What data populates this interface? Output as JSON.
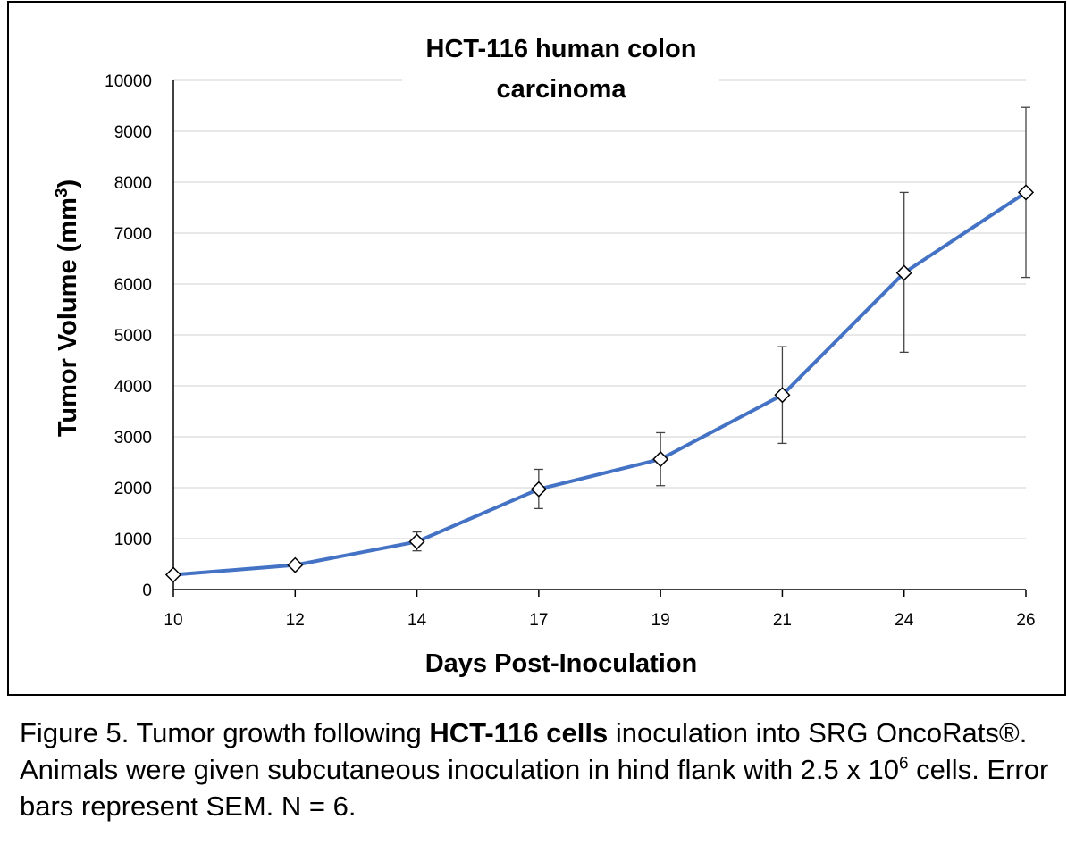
{
  "chart_data": {
    "type": "line",
    "title_lines": [
      "HCT-116 human colon",
      "carcinoma"
    ],
    "xlabel": "Days Post-Inoculation",
    "ylabel": {
      "text": "Tumor Volume (mm",
      "sup": "3",
      "close": ")"
    },
    "categories": [
      "10",
      "12",
      "14",
      "17",
      "19",
      "21",
      "24",
      "26"
    ],
    "series": [
      {
        "values": [
          290,
          480,
          940,
          1970,
          2560,
          3820,
          6220,
          7800
        ],
        "error_upper": [
          290,
          480,
          1130,
          2360,
          3080,
          4770,
          7800,
          9470
        ],
        "error_lower": [
          290,
          480,
          760,
          1590,
          2040,
          2870,
          4660,
          6130
        ],
        "color": "#4472C4",
        "marker": "diamond"
      }
    ],
    "yticks": [
      "0",
      "1000",
      "2000",
      "3000",
      "4000",
      "5000",
      "6000",
      "7000",
      "8000",
      "9000",
      "10000"
    ],
    "ylim": [
      0,
      10000
    ],
    "grid": true,
    "legend": "none"
  },
  "caption": {
    "p1": "Figure 5. Tumor growth following ",
    "bold": "HCT-116 cells",
    "p2": " inoculation into SRG OncoRats®. Animals were given subcutaneous inoculation in hind flank with 2.5 x 10",
    "sup": "6",
    "p3": " cells. Error bars represent SEM. N = 6."
  }
}
